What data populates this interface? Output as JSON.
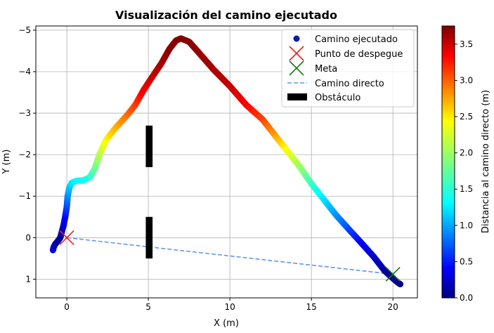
{
  "chart_data": {
    "type": "scatter",
    "title": "Visualización del camino ejecutado",
    "xlabel": "X (m)",
    "ylabel": "Y (m)",
    "xlim": [
      -1.9,
      21.5
    ],
    "ylim": [
      -5.1,
      1.45
    ],
    "y_inverted": true,
    "grid": true,
    "x_ticks": [
      0,
      5,
      10,
      15,
      20
    ],
    "x_tick_labels": [
      "0",
      "5",
      "10",
      "15",
      "20"
    ],
    "y_ticks": [
      -5,
      -4,
      -3,
      -2,
      -1,
      0,
      1
    ],
    "y_tick_labels": [
      "−5",
      "−4",
      "−3",
      "−2",
      "−1",
      "0",
      "1"
    ],
    "legend": {
      "position": "top-right",
      "entries": [
        {
          "label": "Camino ejecutado",
          "marker": "circle",
          "color": "#0a1ab0"
        },
        {
          "label": "Punto de despegue",
          "marker": "x",
          "color": "#e8231e"
        },
        {
          "label": "Meta",
          "marker": "x",
          "color": "#1a7a1a"
        },
        {
          "label": "Camino directo",
          "marker": "dashed-line",
          "color": "#6495ed"
        },
        {
          "label": "Obstáculo",
          "marker": "rect",
          "color": "#000000"
        }
      ]
    },
    "executed_path": {
      "name": "Camino ejecutado",
      "colormap": "jet",
      "color_var": "Distancia al camino directo (m)",
      "cmin": 0.0,
      "cmax": 3.75,
      "points": [
        [
          -0.85,
          0.3,
          0.35
        ],
        [
          -0.8,
          0.22,
          0.3
        ],
        [
          -0.7,
          0.15,
          0.22
        ],
        [
          -0.55,
          0.08,
          0.12
        ],
        [
          -0.4,
          0.0,
          0.05
        ],
        [
          -0.3,
          -0.15,
          0.15
        ],
        [
          -0.2,
          -0.3,
          0.3
        ],
        [
          -0.1,
          -0.5,
          0.45
        ],
        [
          0.0,
          -0.75,
          0.7
        ],
        [
          0.05,
          -1.0,
          0.95
        ],
        [
          0.15,
          -1.2,
          1.15
        ],
        [
          0.3,
          -1.32,
          1.3
        ],
        [
          0.6,
          -1.37,
          1.38
        ],
        [
          1.0,
          -1.38,
          1.42
        ],
        [
          1.4,
          -1.45,
          1.55
        ],
        [
          1.7,
          -1.65,
          1.75
        ],
        [
          2.0,
          -2.0,
          2.05
        ],
        [
          2.4,
          -2.35,
          2.35
        ],
        [
          3.0,
          -2.65,
          2.6
        ],
        [
          3.7,
          -2.95,
          2.85
        ],
        [
          4.2,
          -3.2,
          3.05
        ],
        [
          4.7,
          -3.55,
          3.3
        ],
        [
          5.2,
          -3.85,
          3.45
        ],
        [
          5.8,
          -4.2,
          3.6
        ],
        [
          6.3,
          -4.55,
          3.7
        ],
        [
          6.7,
          -4.75,
          3.72
        ],
        [
          7.0,
          -4.8,
          3.74
        ],
        [
          7.5,
          -4.72,
          3.72
        ],
        [
          8.0,
          -4.5,
          3.68
        ],
        [
          9.0,
          -4.05,
          3.6
        ],
        [
          10.0,
          -3.65,
          3.5
        ],
        [
          11.0,
          -3.2,
          3.3
        ],
        [
          12.0,
          -2.85,
          3.05
        ],
        [
          12.8,
          -2.45,
          2.7
        ],
        [
          13.5,
          -2.1,
          2.35
        ],
        [
          14.3,
          -1.7,
          2.0
        ],
        [
          15.0,
          -1.3,
          1.65
        ],
        [
          15.7,
          -0.95,
          1.35
        ],
        [
          16.5,
          -0.55,
          1.05
        ],
        [
          17.3,
          -0.2,
          0.75
        ],
        [
          18.0,
          0.1,
          0.5
        ],
        [
          18.8,
          0.45,
          0.3
        ],
        [
          19.5,
          0.8,
          0.12
        ],
        [
          20.0,
          0.98,
          0.05
        ],
        [
          20.3,
          1.08,
          0.06
        ],
        [
          20.45,
          1.12,
          0.05
        ]
      ]
    },
    "takeoff_point": {
      "name": "Punto de despegue",
      "x": 0.0,
      "y": 0.0
    },
    "goal_point": {
      "name": "Meta",
      "x": 20.0,
      "y": 0.88
    },
    "direct_path": {
      "name": "Camino directo",
      "x": [
        0.0,
        20.0
      ],
      "y": [
        0.0,
        0.88
      ]
    },
    "obstacles": {
      "name": "Obstáculo",
      "segments": [
        {
          "x": 4.95,
          "y0": -2.7,
          "y1": -1.7
        },
        {
          "x": 5.15,
          "y0": -2.7,
          "y1": -1.7
        },
        {
          "x": 4.95,
          "y0": -0.5,
          "y1": 0.5
        },
        {
          "x": 5.15,
          "y0": -0.5,
          "y1": 0.5
        }
      ]
    },
    "colorbar": {
      "label": "Distancia al camino directo (m)",
      "min": 0.0,
      "max": 3.75,
      "ticks": [
        0.0,
        0.5,
        1.0,
        1.5,
        2.0,
        2.5,
        3.0,
        3.5
      ],
      "tick_labels": [
        "0.0",
        "0.5",
        "1.0",
        "1.5",
        "2.0",
        "2.5",
        "3.0",
        "3.5"
      ]
    }
  }
}
